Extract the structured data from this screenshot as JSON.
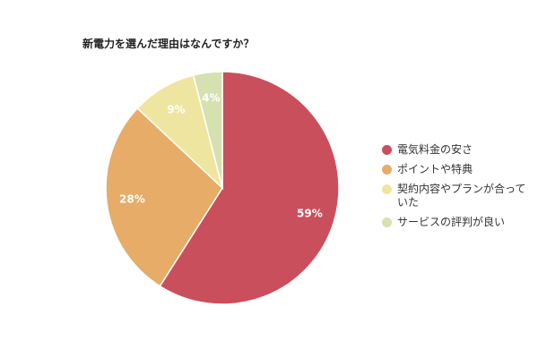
{
  "chart_data": {
    "type": "pie",
    "title": "新電力を選んだ理由はなんですか？",
    "slices": [
      {
        "label": "電気料金の安さ",
        "value": 59,
        "display": "59%",
        "color": "#c94f5c"
      },
      {
        "label": "ポイントや特典",
        "value": 28,
        "display": "28%",
        "color": "#e6ac68"
      },
      {
        "label": "契約内容やプランが合っていた",
        "value": 9,
        "display": "9%",
        "color": "#eee6a0"
      },
      {
        "label": "サービスの評判が良い",
        "value": 4,
        "display": "4%",
        "color": "#d6e1b0"
      }
    ],
    "legend_position": "right"
  }
}
